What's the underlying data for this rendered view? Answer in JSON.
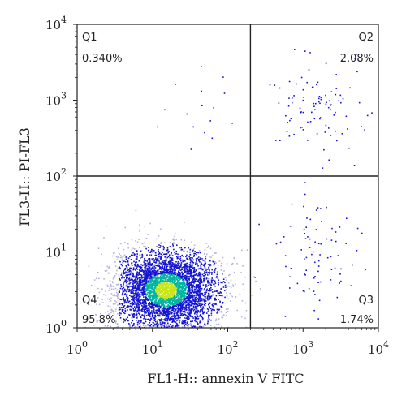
{
  "chart_data": {
    "type": "scatter",
    "subtype": "flow-cytometry-density-dot-plot",
    "xlabel": "FL1-H:: annexin V FITC",
    "ylabel": "FL3-H:: PI-FL3",
    "x_scale": "log",
    "y_scale": "log",
    "xlim": [
      1,
      10000
    ],
    "ylim": [
      1,
      10000
    ],
    "x_ticks": [
      {
        "base": "10",
        "exp": "0",
        "value": 1
      },
      {
        "base": "10",
        "exp": "1",
        "value": 10
      },
      {
        "base": "10",
        "exp": "2",
        "value": 100
      },
      {
        "base": "10",
        "exp": "3",
        "value": 1000
      },
      {
        "base": "10",
        "exp": "4",
        "value": 10000
      }
    ],
    "y_ticks": [
      {
        "base": "10",
        "exp": "0",
        "value": 1
      },
      {
        "base": "10",
        "exp": "1",
        "value": 10
      },
      {
        "base": "10",
        "exp": "2",
        "value": 100
      },
      {
        "base": "10",
        "exp": "3",
        "value": 1000
      },
      {
        "base": "10",
        "exp": "4",
        "value": 10000
      }
    ],
    "gates": {
      "x": 200,
      "y": 100
    },
    "quadrants": [
      {
        "name": "Q1",
        "percent": "0.340%",
        "position": "top-left"
      },
      {
        "name": "Q2",
        "percent": "2.08%",
        "position": "top-right"
      },
      {
        "name": "Q3",
        "percent": "1.74%",
        "position": "bottom-right"
      },
      {
        "name": "Q4",
        "percent": "95.8%",
        "position": "bottom-left"
      }
    ],
    "populations": [
      {
        "quadrant": "Q4",
        "count": 4600,
        "center_x": 15,
        "center_y": 3.2,
        "spread_x_log": 0.34,
        "spread_y_log": 0.26
      },
      {
        "quadrant": "Q1",
        "count": 16,
        "center_x": 40,
        "center_y": 800,
        "spread_x_log": 0.35,
        "spread_y_log": 0.3
      },
      {
        "quadrant": "Q2",
        "count": 100,
        "center_x": 1600,
        "center_y": 800,
        "spread_x_log": 0.3,
        "spread_y_log": 0.3
      },
      {
        "quadrant": "Q3",
        "count": 85,
        "center_x": 1500,
        "center_y": 10,
        "spread_x_log": 0.3,
        "spread_y_log": 0.45
      }
    ],
    "colors": {
      "low": "#1414d2",
      "mid": "#00b4a0",
      "high": "#c8e614",
      "sparse": "#b4b4dc",
      "gate_line": "#222222"
    },
    "grid": false,
    "legend": "none"
  }
}
